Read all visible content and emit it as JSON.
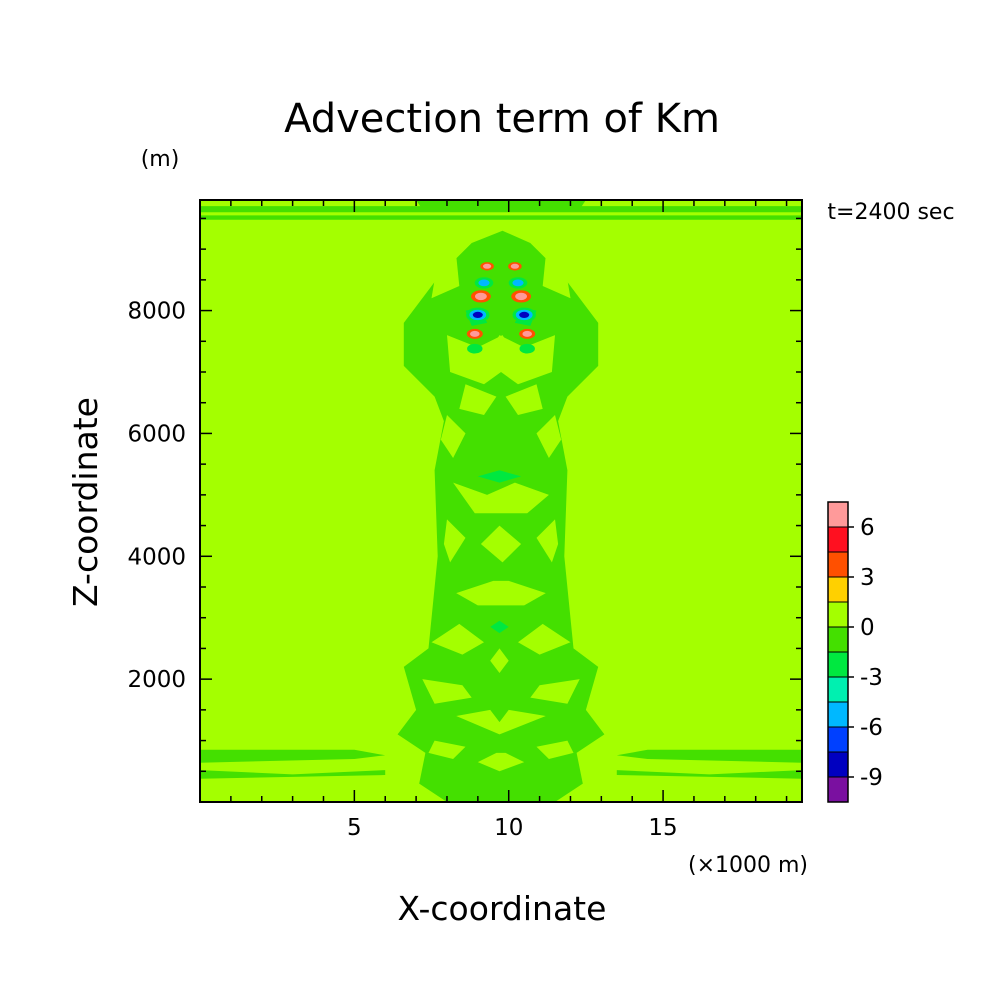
{
  "chart_data": {
    "type": "heatmap",
    "title": "Advection term of Km",
    "time_label": "t=2400 sec",
    "xlabel": "X-coordinate",
    "ylabel": "Z-coordinate",
    "x_unit": "(×1000 m)",
    "y_unit": "(m)",
    "xlim": [
      0,
      19.5
    ],
    "ylim": [
      0,
      9800
    ],
    "x_ticks": [
      5,
      10,
      15
    ],
    "x_tick_labels": [
      "5",
      "10",
      "15"
    ],
    "y_ticks": [
      2000,
      4000,
      6000,
      8000
    ],
    "y_tick_labels": [
      "2000",
      "4000",
      "6000",
      "8000"
    ],
    "colorbar": {
      "levels": [
        -10.5,
        -9,
        -7.5,
        -6,
        -4.5,
        -3,
        -1.5,
        0,
        1.5,
        3,
        4.5,
        6,
        7.5
      ],
      "labels": [
        "-9",
        "-6",
        "-3",
        "0",
        "3",
        "6"
      ],
      "label_values": [
        -9,
        -6,
        -3,
        0,
        3,
        6
      ],
      "colors": [
        "#7a10a0",
        "#0000c0",
        "#0040ff",
        "#00b8ff",
        "#00f0b0",
        "#00e840",
        "#44e000",
        "#a4ff00",
        "#ffd000",
        "#ff5000",
        "#ff1020",
        "#ff9a9a"
      ]
    },
    "background_value": 0.5,
    "regions": [
      {
        "value": -0.8,
        "poly": [
          [
            0,
            9700
          ],
          [
            19.5,
            9700
          ],
          [
            19.5,
            9600
          ],
          [
            0,
            9600
          ]
        ]
      },
      {
        "value": -0.8,
        "poly": [
          [
            7,
            9800
          ],
          [
            12.5,
            9800
          ],
          [
            12.3,
            9650
          ],
          [
            7.2,
            9650
          ]
        ]
      },
      {
        "value": -0.8,
        "poly": [
          [
            0,
            9550
          ],
          [
            19.5,
            9550
          ],
          [
            19.5,
            9480
          ],
          [
            0,
            9480
          ]
        ]
      },
      {
        "value": -0.8,
        "poly": [
          [
            0,
            850
          ],
          [
            5,
            850
          ],
          [
            6,
            760
          ],
          [
            5,
            700
          ],
          [
            0,
            640
          ]
        ]
      },
      {
        "value": -0.8,
        "poly": [
          [
            0,
            520
          ],
          [
            3,
            450
          ],
          [
            6,
            520
          ],
          [
            6,
            440
          ],
          [
            0,
            380
          ]
        ]
      },
      {
        "value": -0.8,
        "poly": [
          [
            19.5,
            850
          ],
          [
            14.5,
            850
          ],
          [
            13.5,
            760
          ],
          [
            14.5,
            700
          ],
          [
            19.5,
            640
          ]
        ]
      },
      {
        "value": -0.8,
        "poly": [
          [
            19.5,
            520
          ],
          [
            16.5,
            450
          ],
          [
            13.5,
            520
          ],
          [
            13.5,
            440
          ],
          [
            19.5,
            380
          ]
        ]
      },
      {
        "value": -0.8,
        "poly": [
          [
            9.8,
            9300
          ],
          [
            8.8,
            9100
          ],
          [
            7.8,
            8600
          ],
          [
            6.6,
            7800
          ],
          [
            6.6,
            7100
          ],
          [
            7.6,
            6600
          ],
          [
            7.9,
            6200
          ],
          [
            7.6,
            5400
          ],
          [
            7.7,
            4000
          ],
          [
            7.4,
            2500
          ],
          [
            6.6,
            2200
          ],
          [
            7.0,
            1500
          ],
          [
            6.4,
            1100
          ],
          [
            7.3,
            800
          ],
          [
            7.1,
            300
          ],
          [
            8.0,
            0
          ],
          [
            11.5,
            0
          ],
          [
            12.4,
            300
          ],
          [
            12.2,
            800
          ],
          [
            13.1,
            1100
          ],
          [
            12.5,
            1500
          ],
          [
            12.9,
            2200
          ],
          [
            12.1,
            2500
          ],
          [
            11.8,
            4000
          ],
          [
            11.9,
            5400
          ],
          [
            11.6,
            6200
          ],
          [
            11.9,
            6600
          ],
          [
            12.9,
            7100
          ],
          [
            12.9,
            7800
          ],
          [
            11.7,
            8600
          ],
          [
            10.7,
            9100
          ]
        ]
      },
      {
        "value": 0.5,
        "poly": [
          [
            8.0,
            7600
          ],
          [
            9.0,
            7400
          ],
          [
            9.8,
            7600
          ],
          [
            10.3,
            7200
          ],
          [
            9.2,
            6800
          ],
          [
            8.1,
            7000
          ]
        ]
      },
      {
        "value": 0.5,
        "poly": [
          [
            11.5,
            7600
          ],
          [
            10.5,
            7400
          ],
          [
            9.7,
            7600
          ],
          [
            9.2,
            7200
          ],
          [
            10.3,
            6800
          ],
          [
            11.4,
            7000
          ]
        ]
      },
      {
        "value": 0.5,
        "poly": [
          [
            7.7,
            8800
          ],
          [
            8.3,
            8900
          ],
          [
            8.4,
            8400
          ],
          [
            7.5,
            8200
          ]
        ]
      },
      {
        "value": 0.5,
        "poly": [
          [
            11.8,
            8800
          ],
          [
            11.2,
            8900
          ],
          [
            11.1,
            8400
          ],
          [
            12.0,
            8200
          ]
        ]
      },
      {
        "value": 0.5,
        "poly": [
          [
            8.6,
            6800
          ],
          [
            9.6,
            6600
          ],
          [
            9.2,
            6300
          ],
          [
            8.4,
            6400
          ]
        ]
      },
      {
        "value": 0.5,
        "poly": [
          [
            10.9,
            6800
          ],
          [
            9.9,
            6600
          ],
          [
            10.3,
            6300
          ],
          [
            11.1,
            6400
          ]
        ]
      },
      {
        "value": 0.5,
        "poly": [
          [
            8.0,
            6300
          ],
          [
            8.6,
            6000
          ],
          [
            8.2,
            5600
          ],
          [
            7.8,
            5900
          ]
        ]
      },
      {
        "value": 0.5,
        "poly": [
          [
            11.5,
            6300
          ],
          [
            10.9,
            6000
          ],
          [
            11.3,
            5600
          ],
          [
            11.7,
            5900
          ]
        ]
      },
      {
        "value": 0.5,
        "poly": [
          [
            8.2,
            5200
          ],
          [
            9.3,
            5000
          ],
          [
            10.2,
            5200
          ],
          [
            11.3,
            5000
          ],
          [
            10.6,
            4700
          ],
          [
            8.9,
            4700
          ]
        ]
      },
      {
        "value": 0.5,
        "poly": [
          [
            8.0,
            4600
          ],
          [
            8.6,
            4300
          ],
          [
            8.1,
            3900
          ],
          [
            7.9,
            4200
          ]
        ]
      },
      {
        "value": 0.5,
        "poly": [
          [
            11.5,
            4600
          ],
          [
            10.9,
            4300
          ],
          [
            11.4,
            3900
          ],
          [
            11.6,
            4200
          ]
        ]
      },
      {
        "value": 0.5,
        "poly": [
          [
            9.1,
            4200
          ],
          [
            9.7,
            4500
          ],
          [
            10.4,
            4200
          ],
          [
            9.8,
            3900
          ]
        ]
      },
      {
        "value": 0.5,
        "poly": [
          [
            8.3,
            3400
          ],
          [
            9.0,
            3200
          ],
          [
            10.5,
            3200
          ],
          [
            11.2,
            3400
          ],
          [
            10.0,
            3600
          ],
          [
            9.5,
            3600
          ]
        ]
      },
      {
        "value": 0.5,
        "poly": [
          [
            7.5,
            2600
          ],
          [
            8.5,
            2400
          ],
          [
            9.2,
            2600
          ],
          [
            8.4,
            2900
          ]
        ]
      },
      {
        "value": 0.5,
        "poly": [
          [
            12.0,
            2600
          ],
          [
            11.0,
            2400
          ],
          [
            10.3,
            2600
          ],
          [
            11.1,
            2900
          ]
        ]
      },
      {
        "value": 0.5,
        "poly": [
          [
            9.4,
            2300
          ],
          [
            9.7,
            2500
          ],
          [
            10.0,
            2300
          ],
          [
            9.7,
            2100
          ]
        ]
      },
      {
        "value": 0.5,
        "poly": [
          [
            7.2,
            2000
          ],
          [
            8.5,
            1900
          ],
          [
            8.8,
            1700
          ],
          [
            7.6,
            1600
          ]
        ]
      },
      {
        "value": 0.5,
        "poly": [
          [
            12.3,
            2000
          ],
          [
            11.0,
            1900
          ],
          [
            10.7,
            1700
          ],
          [
            11.9,
            1600
          ]
        ]
      },
      {
        "value": 0.5,
        "poly": [
          [
            8.3,
            1400
          ],
          [
            9.4,
            1500
          ],
          [
            9.7,
            1300
          ],
          [
            10.0,
            1500
          ],
          [
            11.2,
            1400
          ],
          [
            9.7,
            1100
          ]
        ]
      },
      {
        "value": 0.5,
        "poly": [
          [
            7.6,
            1000
          ],
          [
            8.6,
            900
          ],
          [
            8.2,
            700
          ],
          [
            7.4,
            800
          ]
        ]
      },
      {
        "value": 0.5,
        "poly": [
          [
            11.9,
            1000
          ],
          [
            10.9,
            900
          ],
          [
            11.3,
            700
          ],
          [
            12.1,
            800
          ]
        ]
      },
      {
        "value": 0.5,
        "poly": [
          [
            9.0,
            650
          ],
          [
            9.6,
            800
          ],
          [
            9.9,
            800
          ],
          [
            10.5,
            650
          ],
          [
            9.7,
            500
          ]
        ]
      },
      {
        "value": -2.0,
        "poly": [
          [
            9.0,
            5300
          ],
          [
            9.7,
            5400
          ],
          [
            10.4,
            5300
          ],
          [
            9.7,
            5200
          ]
        ]
      },
      {
        "value": -2.0,
        "poly": [
          [
            9.4,
            2850
          ],
          [
            9.7,
            2950
          ],
          [
            10.0,
            2850
          ],
          [
            9.7,
            2750
          ]
        ]
      },
      {
        "value": -2.0,
        "poly": [
          [
            8.6,
            8000
          ],
          [
            9.1,
            8050
          ],
          [
            9.3,
            7800
          ],
          [
            8.8,
            7750
          ]
        ]
      },
      {
        "value": -2.0,
        "poly": [
          [
            10.9,
            8000
          ],
          [
            10.4,
            8050
          ],
          [
            10.2,
            7800
          ],
          [
            10.7,
            7750
          ]
        ]
      }
    ],
    "blobs": [
      {
        "x": 9.0,
        "z": 7930,
        "r": 0.38,
        "values": [
          -3,
          -6,
          -9
        ]
      },
      {
        "x": 10.5,
        "z": 7930,
        "r": 0.38,
        "values": [
          -3,
          -6,
          -9
        ]
      },
      {
        "x": 9.2,
        "z": 8450,
        "r": 0.3,
        "values": [
          -3,
          -6
        ]
      },
      {
        "x": 10.3,
        "z": 8450,
        "r": 0.3,
        "values": [
          -3,
          -6
        ]
      },
      {
        "x": 8.9,
        "z": 7380,
        "r": 0.25,
        "values": [
          -3
        ]
      },
      {
        "x": 10.6,
        "z": 7380,
        "r": 0.25,
        "values": [
          -3
        ]
      },
      {
        "x": 9.3,
        "z": 8720,
        "r": 0.22,
        "values": [
          3,
          6
        ]
      },
      {
        "x": 10.2,
        "z": 8720,
        "r": 0.22,
        "values": [
          3,
          6
        ]
      },
      {
        "x": 9.1,
        "z": 8230,
        "r": 0.32,
        "values": [
          3,
          6
        ]
      },
      {
        "x": 10.4,
        "z": 8230,
        "r": 0.32,
        "values": [
          3,
          6
        ]
      },
      {
        "x": 8.9,
        "z": 7620,
        "r": 0.26,
        "values": [
          3,
          6
        ]
      },
      {
        "x": 10.6,
        "z": 7620,
        "r": 0.26,
        "values": [
          3,
          6
        ]
      }
    ]
  }
}
